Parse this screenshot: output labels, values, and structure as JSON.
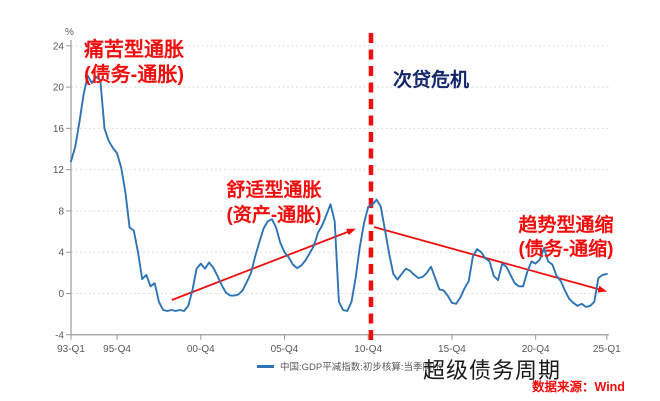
{
  "chart": {
    "unit_label": "%",
    "legend": {
      "series_label": "中国:GDP平减指数:初步核算:当季同比"
    },
    "footer": {
      "caption": "超级债务周期",
      "source": "数据来源：Wind"
    }
  },
  "annotations": {
    "painful_inflation": {
      "line1": "痛苦型通胀",
      "line2": "(债务-通胀)"
    },
    "comfortable_inflation": {
      "line1": "舒适型通胀",
      "line2": "(资产-通胀)"
    },
    "trend_deflation": {
      "line1": "趋势型通缩",
      "line2": "(债务-通缩)"
    },
    "event_label": "次贷危机"
  },
  "colors": {
    "series_blue": "#2E74B5",
    "annotation_red": "#F20D0D",
    "event_navy": "#13256B",
    "grid": "#DCDCDC",
    "axis": "#9B9B9B",
    "tick_text": "#595959"
  },
  "chart_data": {
    "type": "line",
    "title": "",
    "ylabel": "%",
    "ylim": [
      -4,
      24
    ],
    "y_ticks": [
      -4,
      0,
      4,
      8,
      12,
      16,
      20,
      24
    ],
    "grid": "horizontal-dotted",
    "legend_position": "bottom",
    "x_ticks": [
      {
        "label": "93-Q1",
        "index": 0
      },
      {
        "label": "95-Q4",
        "index": 11
      },
      {
        "label": "00-Q4",
        "index": 31
      },
      {
        "label": "05-Q4",
        "index": 51
      },
      {
        "label": "10-Q4",
        "index": 71
      },
      {
        "label": "15-Q4",
        "index": 91
      },
      {
        "label": "20-Q4",
        "index": 111
      },
      {
        "label": "25-Q1",
        "index": 128
      }
    ],
    "event_line": {
      "label": "次贷危机",
      "at_index": 71.66
    },
    "trend_arrows": [
      {
        "name": "rising-inflation-arrow",
        "from_index": 24.1,
        "from_value": -0.63,
        "to_index": 67.6,
        "to_value": 6.2
      },
      {
        "name": "falling-deflation-arrow",
        "from_index": 72.4,
        "from_value": 6.44,
        "to_index": 127.6,
        "to_value": 0.24
      }
    ],
    "series": [
      {
        "name": "中国:GDP平减指数:初步核算:当季同比",
        "frequency": "quarterly",
        "start": "1993-Q1",
        "end": "2025-Q1",
        "values": [
          12.8,
          14.2,
          16.6,
          19.3,
          21.1,
          20.4,
          21.0,
          20.7,
          16.0,
          14.8,
          14.1,
          13.6,
          12.2,
          9.8,
          6.4,
          6.1,
          4.0,
          1.4,
          1.8,
          0.7,
          1.0,
          -0.8,
          -1.6,
          -1.7,
          -1.6,
          -1.7,
          -1.6,
          -1.7,
          -1.2,
          0.3,
          2.4,
          2.9,
          2.4,
          3.0,
          2.5,
          1.7,
          0.8,
          0.1,
          -0.2,
          -0.2,
          -0.1,
          0.3,
          1.1,
          2.0,
          3.6,
          5.0,
          6.3,
          7.0,
          7.2,
          6.4,
          4.9,
          4.0,
          3.5,
          2.8,
          2.45,
          2.7,
          3.2,
          3.9,
          4.6,
          5.9,
          6.6,
          7.6,
          8.65,
          7.0,
          -0.8,
          -1.6,
          -1.7,
          -0.8,
          1.5,
          4.5,
          6.8,
          8.4,
          8.6,
          9.1,
          8.4,
          6.2,
          3.9,
          1.9,
          1.35,
          1.9,
          2.4,
          2.2,
          1.8,
          1.5,
          1.6,
          2.0,
          2.6,
          1.5,
          0.4,
          0.3,
          -0.2,
          -0.9,
          -1.0,
          -0.4,
          0.5,
          1.2,
          3.6,
          4.3,
          4.0,
          3.4,
          3.1,
          1.7,
          1.3,
          2.9,
          2.6,
          1.8,
          1.0,
          0.7,
          0.7,
          2.1,
          3.1,
          2.9,
          3.3,
          4.4,
          3.1,
          2.8,
          1.7,
          1.2,
          0.3,
          -0.5,
          -0.9,
          -1.2,
          -1.0,
          -1.3,
          -1.2,
          -0.8,
          1.5,
          1.8,
          1.9
        ]
      }
    ]
  }
}
